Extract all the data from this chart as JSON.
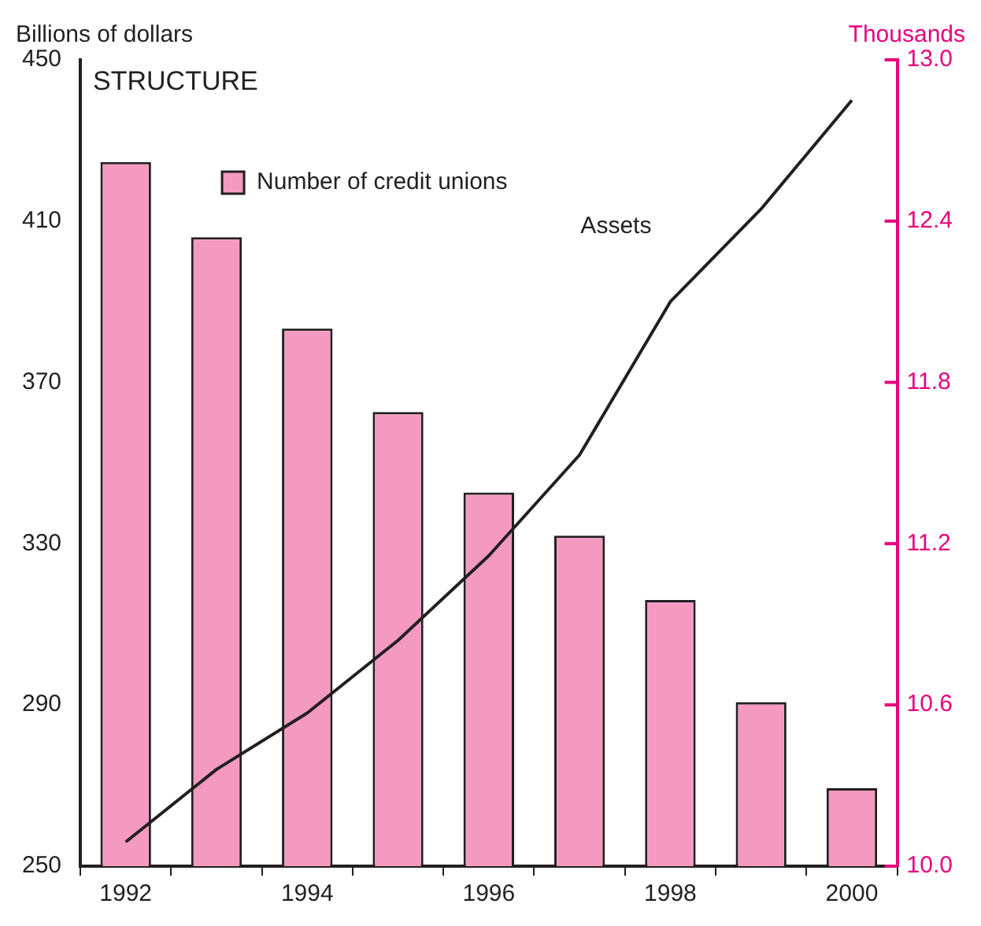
{
  "chart_data": {
    "type": "bar",
    "title": "STRUCTURE",
    "ylabel": "Billions of dollars",
    "y2label": "Thousands",
    "categories": [
      "1992",
      null,
      "1994",
      null,
      "1996",
      null,
      "1998",
      null,
      "2000"
    ],
    "series": [
      {
        "name": "Number of credit unions",
        "axis": "y2",
        "color": "#f49ac1",
        "values": [
          12.62,
          12.34,
          12.0,
          11.69,
          11.39,
          11.23,
          10.99,
          10.61,
          10.29
        ]
      },
      {
        "name": "Assets",
        "type": "line",
        "axis": "y",
        "color": "#231f20",
        "values": [
          256,
          274,
          288,
          306,
          327,
          352,
          390,
          413,
          440
        ]
      }
    ],
    "ylim": [
      250,
      450
    ],
    "yticks": [
      250,
      290,
      330,
      370,
      410,
      450
    ],
    "y2lim": [
      10.0,
      13.0
    ],
    "y2ticks": [
      {
        "value": 10.0,
        "label": "10.0"
      },
      {
        "value": 10.6,
        "label": "10.6"
      },
      {
        "value": 11.2,
        "label": "11.2"
      },
      {
        "value": 11.8,
        "label": "11.8"
      },
      {
        "value": 12.4,
        "label": "12.4"
      },
      {
        "value": 13.0,
        "label": "13.0"
      }
    ],
    "legend": "top left",
    "grid": false,
    "marker": "none",
    "line_style": "solid"
  }
}
